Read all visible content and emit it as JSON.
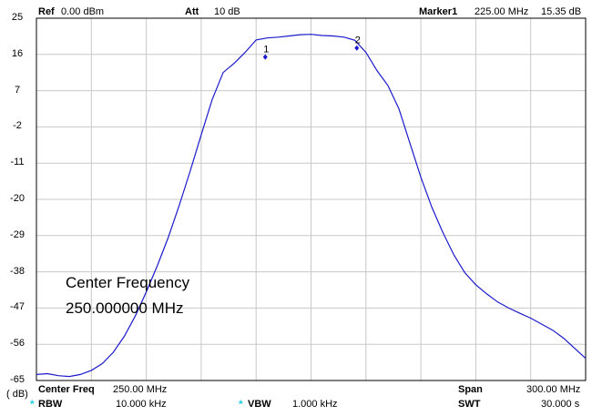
{
  "header": {
    "ref_label": "Ref",
    "ref_value": "0.00 dBm",
    "att_label": "Att",
    "att_value": "10 dB",
    "marker_label": "Marker1",
    "marker_freq": "225.00 MHz",
    "marker_level": "15.35 dB"
  },
  "overlay": {
    "line1": "Center Frequency",
    "line2": "250.000000 MHz"
  },
  "footer": {
    "unit": "( dB)",
    "center_label": "Center Freq",
    "center_value": "250.00 MHz",
    "span_label": "Span",
    "span_value": "300.00 MHz",
    "rbw_star": "*",
    "rbw_label": "RBW",
    "rbw_value": "10.000 kHz",
    "vbw_star": "*",
    "vbw_label": "VBW",
    "vbw_value": "1.000 kHz",
    "swt_label": "SWT",
    "swt_value": "30.000 s"
  },
  "markers": [
    {
      "label": "1",
      "freq_mhz": 225.0,
      "level_db": 15.35
    },
    {
      "label": "2",
      "freq_mhz": 275.0,
      "level_db": 17.6
    }
  ],
  "colors": {
    "trace": "#1a1acc",
    "grid": "#c8c8c8",
    "frame": "#000000",
    "star": "#1fd0e0"
  },
  "chart_data": {
    "type": "line",
    "y_ticks": [
      "25",
      "16",
      "7",
      "-2",
      "-11",
      "-20",
      "-29",
      "-38",
      "-47",
      "-56",
      "-65"
    ],
    "ylim": [
      -65,
      25
    ],
    "xlim_mhz": [
      100,
      400
    ],
    "x_divisions": 10,
    "y_divisions": 10,
    "grid": true,
    "series": [
      {
        "x": [
          100,
          106,
          112,
          118,
          124,
          130,
          136,
          142,
          148,
          154,
          160,
          166,
          172,
          178,
          184,
          190,
          196,
          202,
          208,
          214,
          220,
          226,
          232,
          238,
          244,
          250,
          256,
          262,
          268,
          274,
          280,
          286,
          292,
          298,
          304,
          310,
          316,
          322,
          328,
          334,
          340,
          346,
          352,
          358,
          364,
          370,
          376,
          382,
          388,
          394,
          400
        ],
        "y": [
          -63.5,
          -63.3,
          -63.8,
          -64.0,
          -63.5,
          -62.5,
          -60.8,
          -58.0,
          -54.0,
          -49.0,
          -43.0,
          -36.5,
          -29.5,
          -21.5,
          -13.0,
          -4.0,
          4.8,
          11.5,
          13.8,
          16.5,
          19.6,
          20.1,
          20.3,
          20.6,
          20.9,
          21.0,
          20.7,
          20.6,
          20.3,
          19.5,
          16.5,
          12.0,
          8.3,
          2.5,
          -6.0,
          -14.5,
          -22.0,
          -28.2,
          -33.8,
          -38.2,
          -41.2,
          -43.5,
          -45.5,
          -47.0,
          -48.3,
          -49.5,
          -51.0,
          -52.5,
          -54.5,
          -57.0,
          -59.5
        ]
      }
    ]
  }
}
